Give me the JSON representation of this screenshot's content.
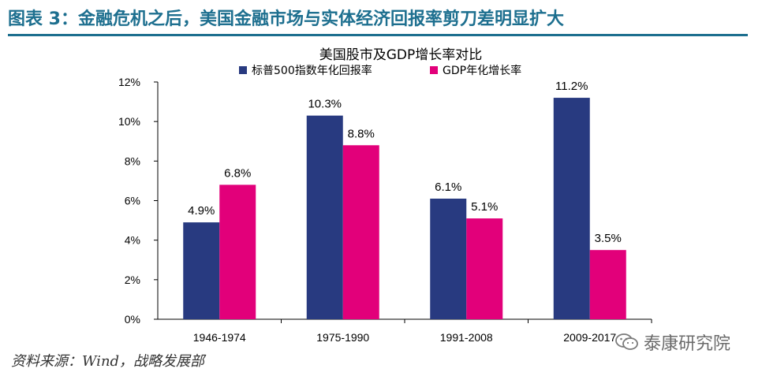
{
  "figure_title": "图表 3：金融危机之后，美国金融市场与实体经济回报率剪刀差明显扩大",
  "source_note": "资料来源：Wind，战略发展部",
  "watermark": {
    "text": "泰康研究院",
    "icon": "wechat-icon"
  },
  "colors": {
    "title": "#1d6f8f",
    "series1": "#283a80",
    "series2": "#e2007a"
  },
  "chart_data": {
    "type": "bar",
    "title": "美国股市及GDP增长率对比",
    "categories": [
      "1946-1974",
      "1975-1990",
      "1991-2008",
      "2009-2017"
    ],
    "series": [
      {
        "name": "标普500指数年化回报率",
        "values": [
          4.9,
          10.3,
          6.1,
          11.2
        ],
        "labels": [
          "4.9%",
          "10.3%",
          "6.1%",
          "11.2%"
        ]
      },
      {
        "name": "GDP年化增长率",
        "values": [
          6.8,
          8.8,
          5.1,
          3.5
        ],
        "labels": [
          "6.8%",
          "8.8%",
          "5.1%",
          "3.5%"
        ]
      }
    ],
    "ylim": [
      0,
      12
    ],
    "yticks": [
      "0%",
      "2%",
      "4%",
      "6%",
      "8%",
      "10%",
      "12%"
    ],
    "grid": false,
    "legend_position": "top"
  }
}
